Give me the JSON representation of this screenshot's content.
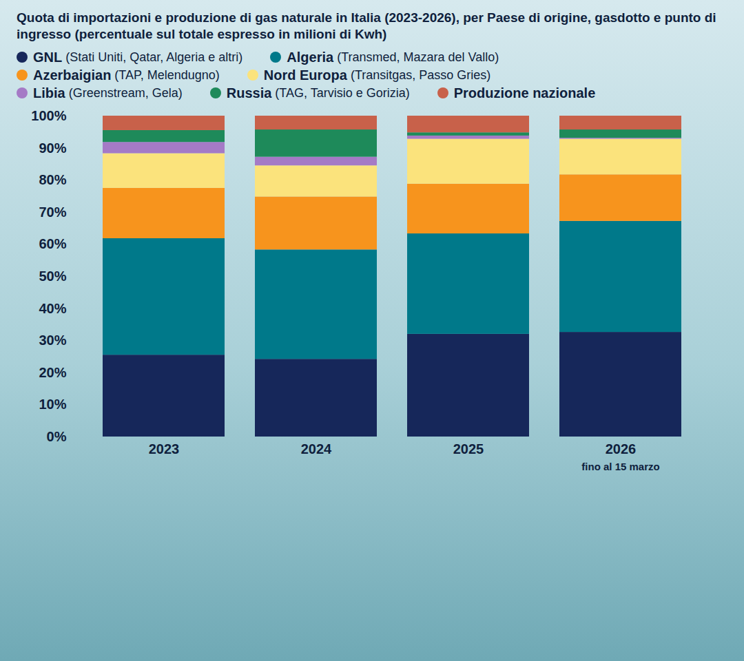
{
  "chart_data": {
    "type": "bar",
    "stacked": true,
    "subtitle": "Quota di importazioni e produzione di gas naturale in Italia (2023-2026), per Paese di origine, gasdotto e punto di ingresso (percentuale sul totale espresso in milioni di Kwh)",
    "categories": [
      "2023",
      "2024",
      "2025",
      "2026"
    ],
    "annotations": [
      {
        "category": "2026",
        "text": "fino al 15 marzo"
      }
    ],
    "series": [
      {
        "name": "GNL (Stati Uniti, Qatar, Algeria e altri)",
        "color": "#16275a",
        "values": [
          25.5,
          24.2,
          32.0,
          32.6
        ]
      },
      {
        "name": "Algeria (Transmed, Mazara del Vallo)",
        "color": "#00798a",
        "values": [
          36.3,
          34.1,
          31.3,
          34.6
        ]
      },
      {
        "name": "Azerbaigian (TAP, Melendugno)",
        "color": "#f7941d",
        "values": [
          15.7,
          16.5,
          15.5,
          14.5
        ]
      },
      {
        "name": "Nord Europa (Transitgas, Passo Gries)",
        "color": "#fbe37c",
        "values": [
          10.8,
          9.7,
          14.0,
          11.1
        ]
      },
      {
        "name": "Libia (Greenstream, Gela)",
        "color": "#a57ac6",
        "values": [
          3.5,
          2.7,
          1.0,
          0.3
        ]
      },
      {
        "name": "Russia (TAG, Tarvisio e Gorizia)",
        "color": "#1e8a5a",
        "values": [
          3.7,
          8.5,
          1.0,
          2.6
        ]
      },
      {
        "name": "Produzione nazionale",
        "color": "#c8614a",
        "values": [
          4.5,
          4.3,
          5.2,
          4.3
        ]
      }
    ],
    "ylim": [
      0,
      100
    ],
    "yticks": [
      {
        "value": 0,
        "label": "0%"
      },
      {
        "value": 10,
        "label": "10%"
      },
      {
        "value": 20,
        "label": "20%"
      },
      {
        "value": 30,
        "label": "30%"
      },
      {
        "value": 40,
        "label": "40%"
      },
      {
        "value": 50,
        "label": "50%"
      },
      {
        "value": 60,
        "label": "60%"
      },
      {
        "value": 70,
        "label": "70%"
      },
      {
        "value": 80,
        "label": "80%"
      },
      {
        "value": 90,
        "label": "90%"
      },
      {
        "value": 100,
        "label": "100%"
      }
    ],
    "grid": false,
    "legend": "top",
    "data_labels": false
  }
}
